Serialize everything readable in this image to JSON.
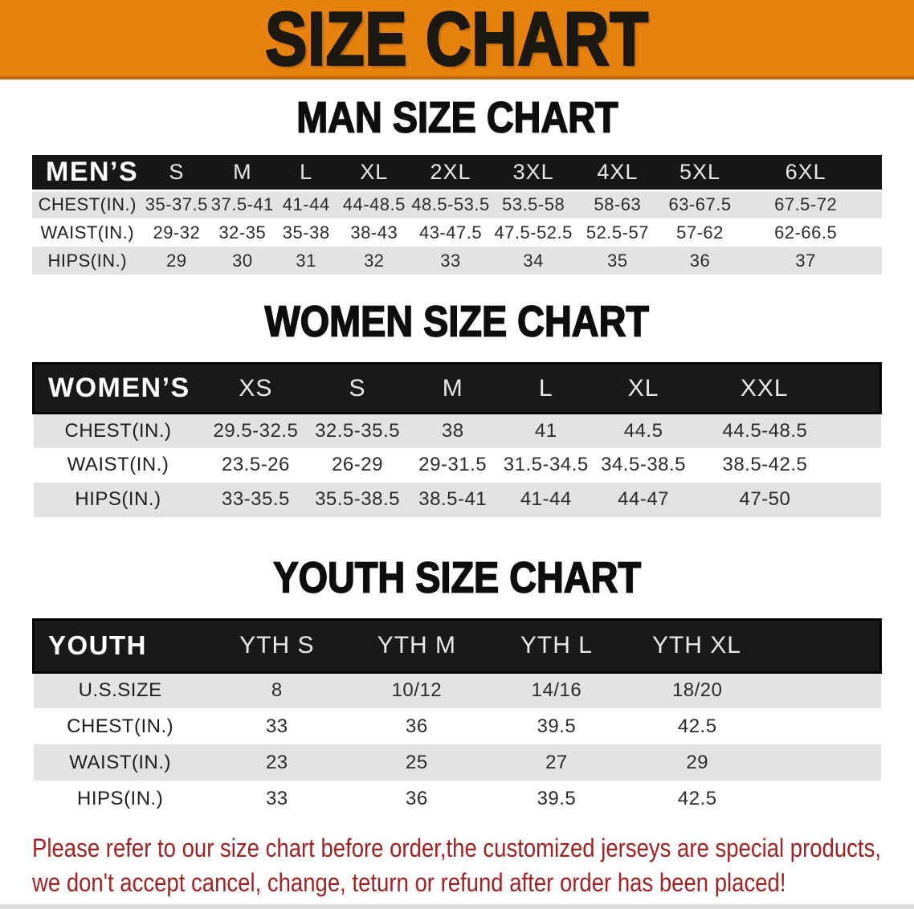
{
  "page": {
    "title": "SIZE CHART",
    "colors": {
      "orange": "#E8820E",
      "orange-dark": "#C4690B",
      "title-black": "#1B1812",
      "header-black": "#171717",
      "row-gray": "#E3E3E3",
      "red": "#A12222"
    }
  },
  "sections": [
    {
      "title": "MAN SIZE CHART",
      "table": {
        "label": "MEN’S",
        "columns": [
          "S",
          "M",
          "L",
          "XL",
          "2XL",
          "3XL",
          "4XL",
          "5XL",
          "6XL"
        ],
        "rows": [
          {
            "label": "CHEST(IN.)",
            "values": [
              "35-37.5",
              "37.5-41",
              "41-44",
              "44-48.5",
              "48.5-53.5",
              "53.5-58",
              "58-63",
              "63-67.5",
              "67.5-72"
            ]
          },
          {
            "label": "WAIST(IN.)",
            "values": [
              "29-32",
              "32-35",
              "35-38",
              "38-43",
              "43-47.5",
              "47.5-52.5",
              "52.5-57",
              "57-62",
              "62-66.5"
            ]
          },
          {
            "label": "HIPS(IN.)",
            "values": [
              "29",
              "30",
              "31",
              "32",
              "33",
              "34",
              "35",
              "36",
              "37"
            ]
          }
        ]
      }
    },
    {
      "title": "WOMEN SIZE CHART",
      "table": {
        "label": "WOMEN’S",
        "columns": [
          "XS",
          "S",
          "M",
          "L",
          "XL",
          "XXL"
        ],
        "rows": [
          {
            "label": "CHEST(IN.)",
            "values": [
              "29.5-32.5",
              "32.5-35.5",
              "38",
              "41",
              "44.5",
              "44.5-48.5"
            ]
          },
          {
            "label": "WAIST(IN.)",
            "values": [
              "23.5-26",
              "26-29",
              "29-31.5",
              "31.5-34.5",
              "34.5-38.5",
              "38.5-42.5"
            ]
          },
          {
            "label": "HIPS(IN.)",
            "values": [
              "33-35.5",
              "35.5-38.5",
              "38.5-41",
              "41-44",
              "44-47",
              "47-50"
            ]
          }
        ]
      }
    },
    {
      "title": "YOUTH SIZE CHART",
      "table": {
        "label": "YOUTH",
        "columns": [
          "YTH S",
          "YTH M",
          "YTH L",
          "YTH XL"
        ],
        "rows": [
          {
            "label": "U.S.SIZE",
            "values": [
              "8",
              "10/12",
              "14/16",
              "18/20"
            ]
          },
          {
            "label": "CHEST(IN.)",
            "values": [
              "33",
              "36",
              "39.5",
              "42.5"
            ]
          },
          {
            "label": "WAIST(IN.)",
            "values": [
              "23",
              "25",
              "27",
              "29"
            ]
          },
          {
            "label": "HIPS(IN.)",
            "values": [
              "33",
              "36",
              "39.5",
              "42.5"
            ]
          }
        ]
      }
    }
  ],
  "disclaimer": {
    "line1": "Please refer to our size chart before order,the customized jerseys are special products,",
    "line2": "we don't accept cancel, change, teturn or refund after order has been placed!"
  }
}
